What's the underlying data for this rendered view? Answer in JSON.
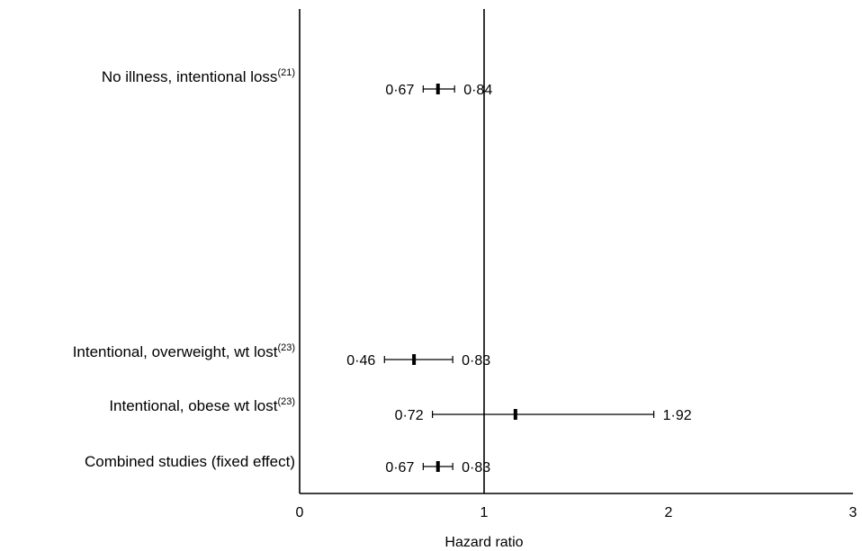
{
  "chart_data": {
    "type": "forest",
    "xlabel": "Hazard ratio",
    "xlim": [
      0,
      3
    ],
    "xticks": [
      "0",
      "1",
      "2",
      "3"
    ],
    "reference_line": 1,
    "studies": [
      {
        "label": "No illness, intentional loss",
        "ref": "(21)",
        "point": 0.75,
        "lower": 0.67,
        "upper": 0.84,
        "lower_label": "0·67",
        "upper_label": "0·84"
      },
      {
        "label": "Intentional, overweight, wt lost",
        "ref": "(23)",
        "point": 0.62,
        "lower": 0.46,
        "upper": 0.83,
        "lower_label": "0·46",
        "upper_label": "0·83"
      },
      {
        "label": "Intentional, obese wt lost",
        "ref": "(23)",
        "point": 1.17,
        "lower": 0.72,
        "upper": 1.92,
        "lower_label": "0·72",
        "upper_label": "1·92"
      },
      {
        "label": "Combined studies (fixed effect)",
        "ref": "",
        "point": 0.75,
        "lower": 0.67,
        "upper": 0.83,
        "lower_label": "0·67",
        "upper_label": "0·83"
      }
    ]
  }
}
